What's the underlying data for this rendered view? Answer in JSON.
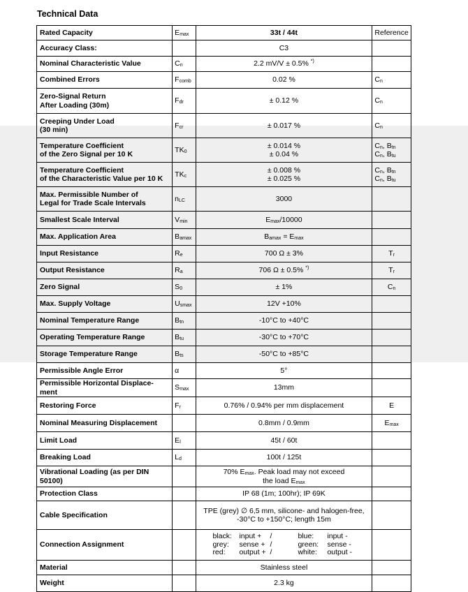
{
  "title": "Technical Data",
  "rows": [
    {
      "label": "Rated Capacity",
      "symbol": [
        [
          "E",
          0
        ],
        [
          "max",
          1
        ]
      ],
      "value": [
        [
          "33t / 44t",
          0
        ]
      ],
      "ref": [
        [
          "Reference",
          0
        ]
      ],
      "h": 21,
      "header": true
    },
    {
      "label": "Accuracy Class:",
      "symbol": [],
      "value": [
        [
          "C3",
          0
        ]
      ],
      "ref": [],
      "h": 23
    },
    {
      "label": "Nominal Characteristic Value",
      "symbol": [
        [
          "C",
          0
        ],
        [
          "n",
          1
        ]
      ],
      "value": [
        [
          "2.2 mV/V ± 0.5% ",
          0
        ],
        [
          "*)",
          2
        ]
      ],
      "ref": [],
      "h": 22
    },
    {
      "label": "Combined Errors",
      "symbol": [
        [
          "F",
          0
        ],
        [
          "comb",
          1
        ]
      ],
      "value": [
        [
          "0.02 %",
          0
        ]
      ],
      "ref": [
        [
          "C",
          0
        ],
        [
          "n",
          1
        ]
      ],
      "h": 24
    },
    {
      "label": "Zero-Signal Return\nAfter Loading (30m)",
      "symbol": [
        [
          "F",
          0
        ],
        [
          "dr",
          1
        ]
      ],
      "value": [
        [
          "± 0.12 %",
          0
        ]
      ],
      "ref": [
        [
          "C",
          0
        ],
        [
          "n",
          1
        ]
      ],
      "h": 36
    },
    {
      "label": "Creeping Under Load\n(30 min)",
      "symbol": [
        [
          "F",
          0
        ],
        [
          "cr",
          1
        ]
      ],
      "value": [
        [
          "± 0.017 %",
          0
        ]
      ],
      "ref": [
        [
          "C",
          0
        ],
        [
          "n",
          1
        ]
      ],
      "h": 35
    },
    {
      "label": "Temperature Coefficient\nof the Zero Signal per 10 K",
      "symbol": [
        [
          "TK",
          0
        ],
        [
          "0",
          1
        ]
      ],
      "value": [
        [
          "± 0.014 %\n± 0.04 %",
          0
        ]
      ],
      "ref": [
        [
          "C",
          0
        ],
        [
          "n",
          1
        ],
        [
          ", B",
          0
        ],
        [
          "tn",
          1
        ],
        [
          "\nC",
          0
        ],
        [
          "n",
          1
        ],
        [
          ", B",
          0
        ],
        [
          "tu",
          1
        ]
      ],
      "h": 35
    },
    {
      "label": "Temperature Coefficient\nof the Characteristic Value per 10 K",
      "symbol": [
        [
          "TK",
          0
        ],
        [
          "c",
          1
        ]
      ],
      "value": [
        [
          "± 0.008 %\n± 0.025 %",
          0
        ]
      ],
      "ref": [
        [
          "C",
          0
        ],
        [
          "n",
          1
        ],
        [
          ", B",
          0
        ],
        [
          "tn",
          1
        ],
        [
          "\nC",
          0
        ],
        [
          "n",
          1
        ],
        [
          ", B",
          0
        ],
        [
          "tu",
          1
        ]
      ],
      "h": 35
    },
    {
      "label": "Max. Permissible Number of\nLegal for Trade Scale Intervals",
      "symbol": [
        [
          "n",
          0
        ],
        [
          "LC",
          1
        ]
      ],
      "value": [
        [
          "3000",
          0
        ]
      ],
      "ref": [],
      "h": 35
    },
    {
      "label": "Smallest Scale Interval",
      "symbol": [
        [
          "V",
          0
        ],
        [
          "min",
          1
        ]
      ],
      "value": [
        [
          "E",
          0
        ],
        [
          "max",
          1
        ],
        [
          "/10000",
          0
        ]
      ],
      "ref": [],
      "h": 25
    },
    {
      "label": "Max. Application Area",
      "symbol": [
        [
          "B",
          0
        ],
        [
          "amax",
          1
        ]
      ],
      "value": [
        [
          "B",
          0
        ],
        [
          "amax",
          1
        ],
        [
          " = E",
          0
        ],
        [
          "max",
          1
        ]
      ],
      "ref": [],
      "h": 24
    },
    {
      "label": "Input Resistance",
      "symbol": [
        [
          "R",
          0
        ],
        [
          "e",
          1
        ]
      ],
      "value": [
        [
          "700 Ω ± 3%",
          0
        ]
      ],
      "ref": [
        [
          "T",
          0
        ],
        [
          "r",
          1
        ]
      ],
      "refc": true,
      "h": 24
    },
    {
      "label": "Output Resistance",
      "symbol": [
        [
          "R",
          0
        ],
        [
          "a",
          1
        ]
      ],
      "value": [
        [
          "706 Ω ± 0.5% ",
          0
        ],
        [
          "*)",
          2
        ]
      ],
      "ref": [
        [
          "T",
          0
        ],
        [
          "r",
          1
        ]
      ],
      "refc": true,
      "h": 24
    },
    {
      "label": "Zero Signal",
      "symbol": [
        [
          "S",
          0
        ],
        [
          "0",
          1
        ]
      ],
      "value": [
        [
          "± 1%",
          0
        ]
      ],
      "ref": [
        [
          "C",
          0
        ],
        [
          "n",
          1
        ]
      ],
      "refc": true,
      "h": 24
    },
    {
      "label": "Max. Supply Voltage",
      "symbol": [
        [
          "U",
          0
        ],
        [
          "smax",
          1
        ]
      ],
      "value": [
        [
          "12V +10%",
          0
        ]
      ],
      "ref": [],
      "h": 24
    },
    {
      "label": "Nominal Temperature Range",
      "symbol": [
        [
          "B",
          0
        ],
        [
          "tn",
          1
        ]
      ],
      "value": [
        [
          "-10°C to +40°C",
          0
        ]
      ],
      "ref": [],
      "h": 24
    },
    {
      "label": "Operating Temperature Range",
      "symbol": [
        [
          "B",
          0
        ],
        [
          "tu",
          1
        ]
      ],
      "value": [
        [
          "-30°C to +70°C",
          0
        ]
      ],
      "ref": [],
      "h": 24
    },
    {
      "label": "Storage Temperature Range",
      "symbol": [
        [
          "B",
          0
        ],
        [
          "ts",
          1
        ]
      ],
      "value": [
        [
          "-50°C to +85°C",
          0
        ]
      ],
      "ref": [],
      "h": 24
    },
    {
      "label": "Permissible Angle Error",
      "symbol": [
        [
          "α",
          0
        ]
      ],
      "value": [
        [
          "5°",
          0
        ]
      ],
      "ref": [],
      "h": 23
    },
    {
      "label": "Permissible Horizontal Displace-\nment",
      "symbol": [
        [
          "S",
          0
        ],
        [
          "max",
          1
        ]
      ],
      "value": [
        [
          "13mm",
          0
        ]
      ],
      "ref": [],
      "h": 25
    },
    {
      "label": "Restoring Force",
      "symbol": [
        [
          "F",
          0
        ],
        [
          "r",
          1
        ]
      ],
      "value": [
        [
          "0.76% / 0.94% per mm displacement",
          0
        ]
      ],
      "ref": [
        [
          "E",
          0
        ]
      ],
      "refc": true,
      "h": 25
    },
    {
      "label": "Nominal Measuring Displacement",
      "symbol": [],
      "value": [
        [
          "0.8mm / 0.9mm",
          0
        ]
      ],
      "ref": [
        [
          "E",
          0
        ],
        [
          "max",
          1
        ]
      ],
      "refc": true,
      "h": 25
    },
    {
      "label": "Limit Load",
      "symbol": [
        [
          "E",
          0
        ],
        [
          "l",
          1
        ]
      ],
      "value": [
        [
          "45t / 60t",
          0
        ]
      ],
      "ref": [],
      "h": 25
    },
    {
      "label": "Breaking Load",
      "symbol": [
        [
          "L",
          0
        ],
        [
          "d",
          1
        ]
      ],
      "value": [
        [
          "100t / 125t",
          0
        ]
      ],
      "ref": [],
      "h": 24
    },
    {
      "label": "Vibrational Loading (as per DIN\n50100)",
      "symbol": [],
      "value": [
        [
          "70% E",
          0
        ],
        [
          "max",
          1
        ],
        [
          ". Peak load may not exceed\nthe load E",
          0
        ],
        [
          "max",
          1
        ]
      ],
      "ref": [],
      "h": 30
    },
    {
      "label": "Protection Class",
      "symbol": [],
      "value": [
        [
          "IP 68 (1m; 100hr); IP 69K",
          0
        ]
      ],
      "ref": [],
      "h": 20
    },
    {
      "label": "Cable Specification",
      "symbol": [],
      "value": [
        [
          "TPE (grey) ∅ 6,5 mm, silicone- and halogen-free,\n-30°C to +150°C; length 15m",
          0
        ]
      ],
      "ref": [],
      "h": 41
    },
    {
      "label": "Connection Assignment",
      "symbol": [],
      "connection": [
        [
          "black:",
          "input +",
          "/",
          "blue:",
          "input -"
        ],
        [
          "grey:",
          "sense +",
          "/",
          "green:",
          "sense -"
        ],
        [
          "red:",
          "output +",
          "/",
          "white:",
          "output -"
        ]
      ],
      "ref": [],
      "h": 44
    },
    {
      "label": "Material",
      "symbol": [],
      "value": [
        [
          "Stainless steel",
          0
        ]
      ],
      "ref": [],
      "h": 21
    },
    {
      "label": "Weight",
      "symbol": [],
      "value": [
        [
          "2.3 kg",
          0
        ]
      ],
      "ref": [],
      "h": 24
    }
  ]
}
